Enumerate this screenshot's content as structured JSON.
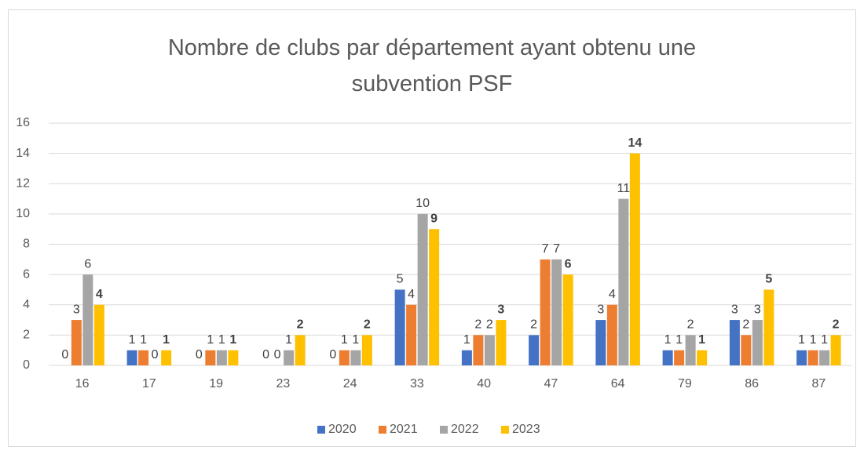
{
  "chart_data": {
    "type": "bar",
    "title": "Nombre de clubs par département ayant obtenu une subvention PSF",
    "categories": [
      "16",
      "17",
      "19",
      "23",
      "24",
      "33",
      "40",
      "47",
      "64",
      "79",
      "86",
      "87"
    ],
    "series": [
      {
        "name": "2020",
        "color": "#4472c4",
        "values": [
          0,
          1,
          0,
          0,
          0,
          5,
          1,
          2,
          3,
          1,
          3,
          1
        ]
      },
      {
        "name": "2021",
        "color": "#ed7d31",
        "values": [
          3,
          1,
          1,
          0,
          1,
          4,
          2,
          7,
          4,
          1,
          2,
          1
        ]
      },
      {
        "name": "2022",
        "color": "#a5a5a5",
        "values": [
          6,
          0,
          1,
          1,
          1,
          10,
          2,
          7,
          11,
          2,
          3,
          1
        ]
      },
      {
        "name": "2023",
        "color": "#ffc000",
        "bold_labels": true,
        "values": [
          4,
          1,
          1,
          2,
          2,
          9,
          3,
          6,
          14,
          1,
          5,
          2
        ]
      }
    ],
    "ylim": [
      0,
      16
    ],
    "yticks": [
      0,
      2,
      4,
      6,
      8,
      10,
      12,
      14,
      16
    ],
    "grid": true,
    "legend": "bottom"
  }
}
